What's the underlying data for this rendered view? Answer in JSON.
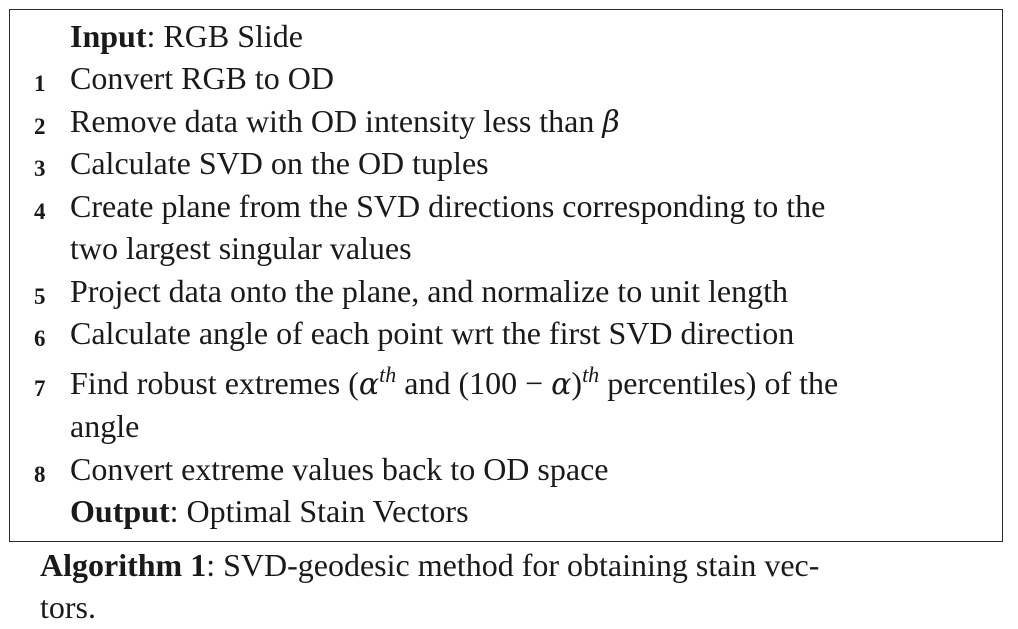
{
  "algorithm": {
    "input_label": "Input",
    "input_value": ": RGB Slide",
    "steps": [
      {
        "num": "1",
        "text": "Convert RGB to OD"
      },
      {
        "num": "2",
        "text": "Remove data with OD intensity less than ",
        "symbol": "β"
      },
      {
        "num": "3",
        "text": "Calculate SVD on the OD tuples"
      },
      {
        "num": "4",
        "text": "Create plane from the SVD directions corresponding to the",
        "text2": "two largest singular values"
      },
      {
        "num": "5",
        "text": "Project data onto the plane, and normalize to unit length"
      },
      {
        "num": "6",
        "text": "Calculate angle of each point wrt the first SVD direction"
      },
      {
        "num": "7",
        "text_a": "Find robust extremes (",
        "alpha": "α",
        "th": "th",
        "text_b": " and (100 − ",
        "alpha2": "α",
        "text_c": ")",
        "th2": "th",
        "text_d": " percentiles) of the",
        "text2": "angle"
      },
      {
        "num": "8",
        "text": "Convert extreme values back to OD space"
      }
    ],
    "output_label": "Output",
    "output_value": ": Optimal Stain Vectors"
  },
  "caption": {
    "label": "Algorithm 1",
    "text": ": SVD-geodesic method for obtaining stain vec-",
    "text2": "tors."
  }
}
